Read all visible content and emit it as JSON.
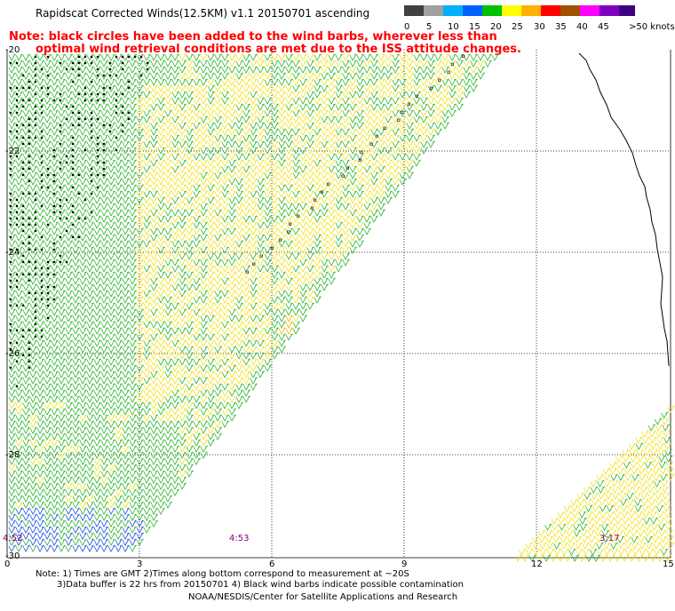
{
  "title": "Rapidscat Corrected Winds(12.5KM) v1.1 20150701 ascending",
  "note": {
    "line1": "Note: black circles have been added to the wind barbs, wherever less than",
    "line2": "optimal wind retrieval conditions are met due to the ISS attitude changes."
  },
  "legend": {
    "labels": [
      "0",
      "5",
      "10",
      "15",
      "20",
      "25",
      "30",
      "35",
      "40",
      "45",
      ">50 knots"
    ],
    "colors": [
      "#404040",
      "#a0a0a0",
      "#00b0ff",
      "#0060ff",
      "#00c000",
      "#ffff00",
      "#ffb000",
      "#ff0000",
      "#a05000",
      "#ff00ff",
      "#8000c0",
      "#400080"
    ]
  },
  "axes": {
    "y_labels": [
      "-20",
      "-22",
      "-24",
      "-26",
      "-28",
      "-30"
    ],
    "x_labels": [
      "0",
      "3",
      "6",
      "9",
      "12",
      "15"
    ]
  },
  "pass_times": [
    "4:52",
    "4:53",
    "3:17"
  ],
  "footer": {
    "line1": "Note: 1) Times are GMT 2)Times along bottom correspond to measurement at ~20S",
    "line2": "3)Data buffer is 22 hrs from 20150701 4) Black wind barbs indicate possible contamination"
  },
  "credit": "NOAA/NESDIS/Center for Satellite Applications and Research"
}
